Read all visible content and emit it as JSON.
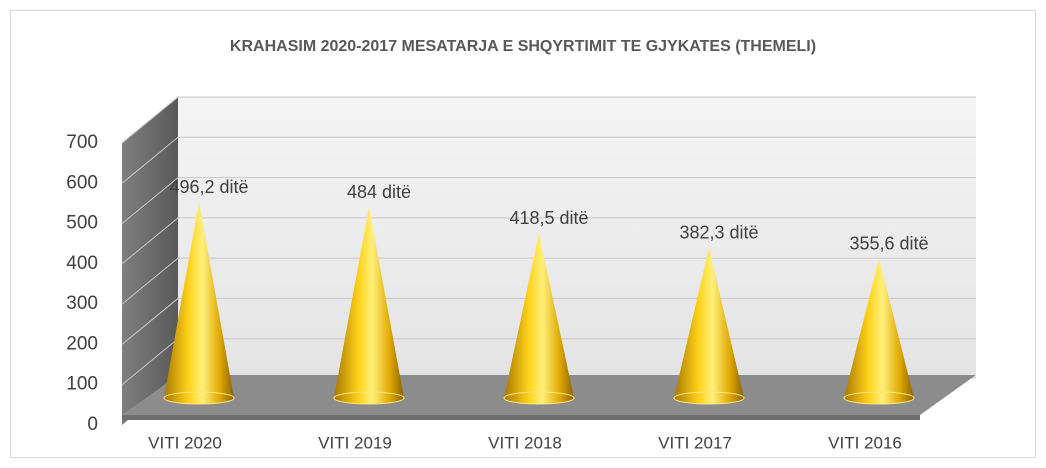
{
  "chart_data": {
    "type": "cone",
    "title": "KRAHASIM 2020-2017 MESATARJA E SHQYRTIMIT TE GJYKATES (THEMELI)",
    "categories": [
      "VITI 2020",
      "VITI 2019",
      "VITI 2018",
      "VITI 2017",
      "VITI 2016"
    ],
    "values": [
      496.2,
      484,
      418.5,
      382.3,
      355.6
    ],
    "value_labels": [
      "496,2 ditë",
      "484 ditë",
      "418,5 ditë",
      "382,3 ditë",
      "355,6 ditë"
    ],
    "color": "#ffc000",
    "ylim": [
      0,
      700
    ],
    "yticks": [
      0,
      100,
      200,
      300,
      400,
      500,
      600,
      700
    ],
    "grid": true
  }
}
